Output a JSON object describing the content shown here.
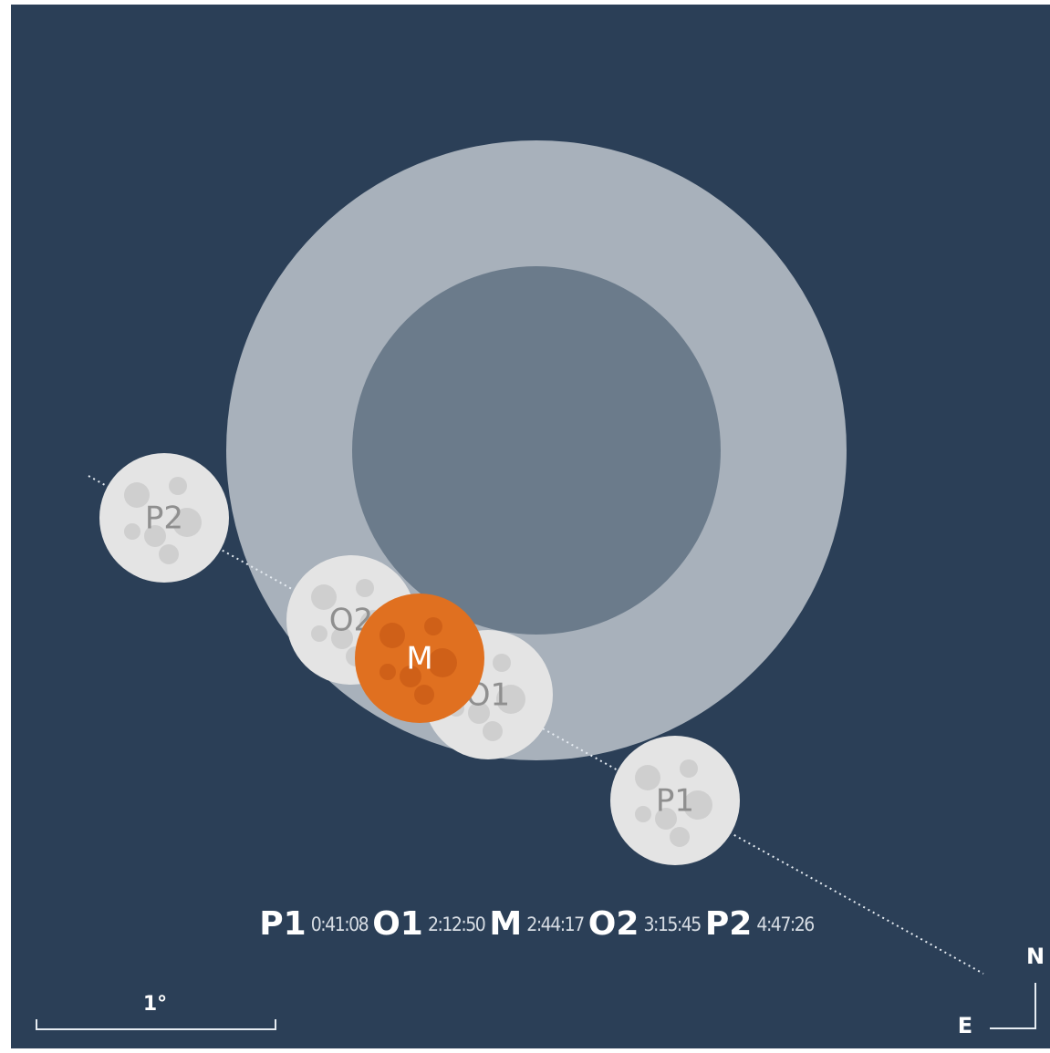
{
  "moons": [
    {
      "label": "P2"
    },
    {
      "label": "O2"
    },
    {
      "label": "O1"
    },
    {
      "label": "M"
    },
    {
      "label": "P1"
    }
  ],
  "timeline": [
    {
      "label": "P1",
      "time": "0:41:08"
    },
    {
      "label": "O1",
      "time": "2:12:50"
    },
    {
      "label": "M",
      "time": "2:44:17"
    },
    {
      "label": "O2",
      "time": "3:15:45"
    },
    {
      "label": "P2",
      "time": "4:47:26"
    }
  ],
  "scale": {
    "label": "1°"
  },
  "compass": {
    "north": "N",
    "east": "E"
  }
}
